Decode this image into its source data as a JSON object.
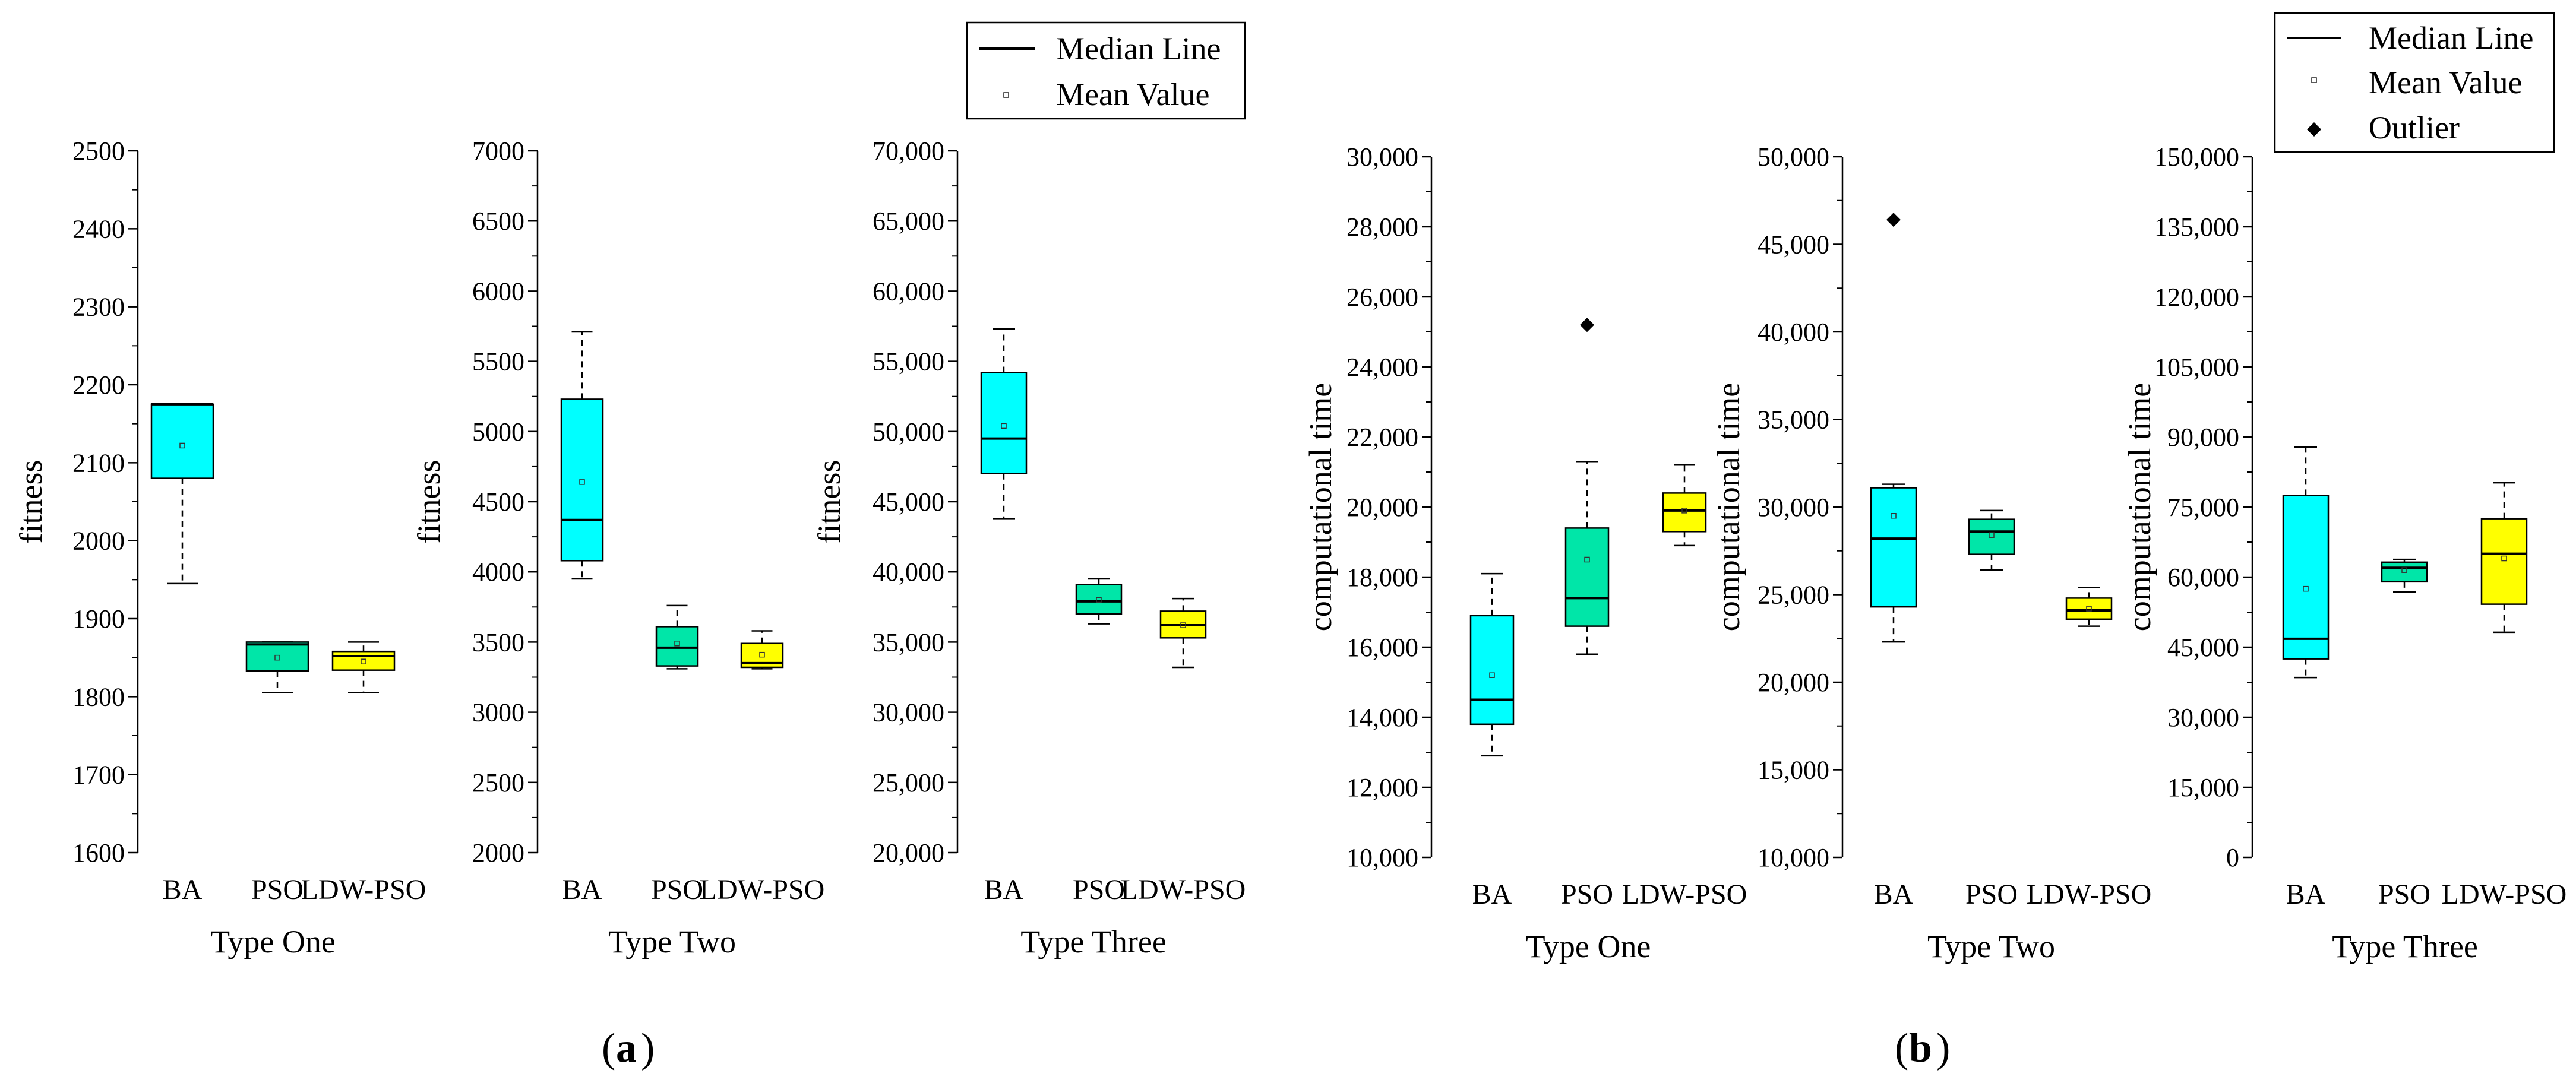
{
  "chart_data": [
    {
      "type": "box",
      "title": "Type One",
      "xlabel": "Type One",
      "ylabel": "fitness",
      "ylim": [
        1600,
        2500
      ],
      "yticks": [
        1600,
        1700,
        1800,
        1900,
        2000,
        2100,
        2200,
        2300,
        2400,
        2500
      ],
      "ytick_labels": [
        "1600",
        "1700",
        "1800",
        "1900",
        "2000",
        "2100",
        "2200",
        "2300",
        "2400",
        "2500"
      ],
      "categories": [
        "BA",
        "PSO",
        "LDW-PSO"
      ],
      "boxes": [
        {
          "name": "BA",
          "color": "#00FFFF",
          "min": 1945,
          "q1": 2080,
          "median": 2175,
          "q3": 2175,
          "max": 2175,
          "mean": 2122,
          "outliers": []
        },
        {
          "name": "PSO",
          "color": "#00E6A8",
          "min": 1805,
          "q1": 1833,
          "median": 1867,
          "q3": 1870,
          "max": 1870,
          "mean": 1850,
          "outliers": []
        },
        {
          "name": "LDW-PSO",
          "color": "#FFFF00",
          "min": 1805,
          "q1": 1834,
          "median": 1852,
          "q3": 1858,
          "max": 1870,
          "mean": 1845,
          "outliers": []
        }
      ]
    },
    {
      "type": "box",
      "title": "Type Two",
      "xlabel": "Type Two",
      "ylabel": "fitness",
      "ylim": [
        2000,
        7000
      ],
      "yticks": [
        2000,
        2500,
        3000,
        3500,
        4000,
        4500,
        5000,
        5500,
        6000,
        6500,
        7000
      ],
      "ytick_labels": [
        "2000",
        "2500",
        "3000",
        "3500",
        "4000",
        "4500",
        "5000",
        "5500",
        "6000",
        "6500",
        "7000"
      ],
      "categories": [
        "BA",
        "PSO",
        "LDW-PSO"
      ],
      "boxes": [
        {
          "name": "BA",
          "color": "#00FFFF",
          "min": 3950,
          "q1": 4080,
          "median": 4370,
          "q3": 5230,
          "max": 5710,
          "mean": 4640,
          "outliers": []
        },
        {
          "name": "PSO",
          "color": "#00E6A8",
          "min": 3310,
          "q1": 3330,
          "median": 3460,
          "q3": 3610,
          "max": 3760,
          "mean": 3490,
          "outliers": []
        },
        {
          "name": "LDW-PSO",
          "color": "#FFFF00",
          "min": 3310,
          "q1": 3320,
          "median": 3350,
          "q3": 3490,
          "max": 3580,
          "mean": 3410,
          "outliers": []
        }
      ]
    },
    {
      "type": "box",
      "title": "Type Three",
      "xlabel": "Type Three",
      "ylabel": "fitness",
      "ylim": [
        20000,
        70000
      ],
      "yticks": [
        20000,
        25000,
        30000,
        35000,
        40000,
        45000,
        50000,
        55000,
        60000,
        65000,
        70000
      ],
      "ytick_labels": [
        "20,000",
        "25,000",
        "30,000",
        "35,000",
        "40,000",
        "45,000",
        "50,000",
        "55,000",
        "60,000",
        "65,000",
        "70,000"
      ],
      "categories": [
        "BA",
        "PSO",
        "LDW-PSO"
      ],
      "boxes": [
        {
          "name": "BA",
          "color": "#00FFFF",
          "min": 43800,
          "q1": 47000,
          "median": 49500,
          "q3": 54200,
          "max": 57300,
          "mean": 50400,
          "outliers": []
        },
        {
          "name": "PSO",
          "color": "#00E6A8",
          "min": 36300,
          "q1": 37000,
          "median": 37900,
          "q3": 39100,
          "max": 39500,
          "mean": 38000,
          "outliers": []
        },
        {
          "name": "LDW-PSO",
          "color": "#FFFF00",
          "min": 33200,
          "q1": 35300,
          "median": 36200,
          "q3": 37200,
          "max": 38100,
          "mean": 36200,
          "outliers": []
        }
      ]
    },
    {
      "type": "box",
      "title": "Type One",
      "xlabel": "Type One",
      "ylabel": "computational time",
      "ylim": [
        10000,
        30000
      ],
      "yticks": [
        10000,
        12000,
        14000,
        16000,
        18000,
        20000,
        22000,
        24000,
        26000,
        28000,
        30000
      ],
      "ytick_labels": [
        "10,000",
        "12,000",
        "14,000",
        "16,000",
        "18,000",
        "20,000",
        "22,000",
        "24,000",
        "26,000",
        "28,000",
        "30,000"
      ],
      "categories": [
        "BA",
        "PSO",
        "LDW-PSO"
      ],
      "boxes": [
        {
          "name": "BA",
          "color": "#00FFFF",
          "min": 12900,
          "q1": 13800,
          "median": 14500,
          "q3": 16900,
          "max": 18100,
          "mean": 15200,
          "outliers": []
        },
        {
          "name": "PSO",
          "color": "#00E6A8",
          "min": 15800,
          "q1": 16600,
          "median": 17400,
          "q3": 19400,
          "max": 21300,
          "mean": 18500,
          "outliers": [
            25200
          ]
        },
        {
          "name": "LDW-PSO",
          "color": "#FFFF00",
          "min": 18900,
          "q1": 19300,
          "median": 19900,
          "q3": 20400,
          "max": 21200,
          "mean": 19900,
          "outliers": []
        }
      ]
    },
    {
      "type": "box",
      "title": "Type Two",
      "xlabel": "Type Two",
      "ylabel": "computational time",
      "ylim": [
        10000,
        50000
      ],
      "yticks": [
        10000,
        15000,
        20000,
        25000,
        30000,
        35000,
        40000,
        45000,
        50000
      ],
      "ytick_labels": [
        "10,000",
        "15,000",
        "20,000",
        "25,000",
        "30,000",
        "35,000",
        "40,000",
        "45,000",
        "50,000"
      ],
      "categories": [
        "BA",
        "PSO",
        "LDW-PSO"
      ],
      "boxes": [
        {
          "name": "BA",
          "color": "#00FFFF",
          "min": 22300,
          "q1": 24300,
          "median": 28200,
          "q3": 31100,
          "max": 31300,
          "mean": 29500,
          "outliers": [
            46400
          ]
        },
        {
          "name": "PSO",
          "color": "#00E6A8",
          "min": 26400,
          "q1": 27300,
          "median": 28600,
          "q3": 29300,
          "max": 29800,
          "mean": 28400,
          "outliers": []
        },
        {
          "name": "LDW-PSO",
          "color": "#FFFF00",
          "min": 23200,
          "q1": 23600,
          "median": 24100,
          "q3": 24800,
          "max": 25400,
          "mean": 24200,
          "outliers": []
        }
      ]
    },
    {
      "type": "box",
      "title": "Type Three",
      "xlabel": "Type Three",
      "ylabel": "computational time",
      "ylim": [
        0,
        150000
      ],
      "yticks": [
        0,
        15000,
        30000,
        45000,
        60000,
        75000,
        90000,
        105000,
        120000,
        135000,
        150000
      ],
      "ytick_labels": [
        "0",
        "15,000",
        "30,000",
        "45,000",
        "60,000",
        "75,000",
        "90,000",
        "105,000",
        "120,000",
        "135,000",
        "150,000"
      ],
      "categories": [
        "BA",
        "PSO",
        "LDW-PSO"
      ],
      "boxes": [
        {
          "name": "BA",
          "color": "#00FFFF",
          "min": 38500,
          "q1": 42500,
          "median": 46800,
          "q3": 77500,
          "max": 87800,
          "mean": 57500,
          "outliers": []
        },
        {
          "name": "PSO",
          "color": "#00E6A8",
          "min": 56800,
          "q1": 59000,
          "median": 62000,
          "q3": 63200,
          "max": 63800,
          "mean": 61500,
          "outliers": []
        },
        {
          "name": "LDW-PSO",
          "color": "#FFFF00",
          "min": 48200,
          "q1": 54200,
          "median": 65000,
          "q3": 72500,
          "max": 80200,
          "mean": 64000,
          "outliers": []
        }
      ]
    }
  ],
  "legend_a": {
    "median": "Median Line",
    "mean": "Mean Value"
  },
  "legend_b": {
    "median": "Median Line",
    "mean": "Mean Value",
    "outlier": "Outlier"
  },
  "panel_labels": {
    "a": "a",
    "b": "b"
  }
}
